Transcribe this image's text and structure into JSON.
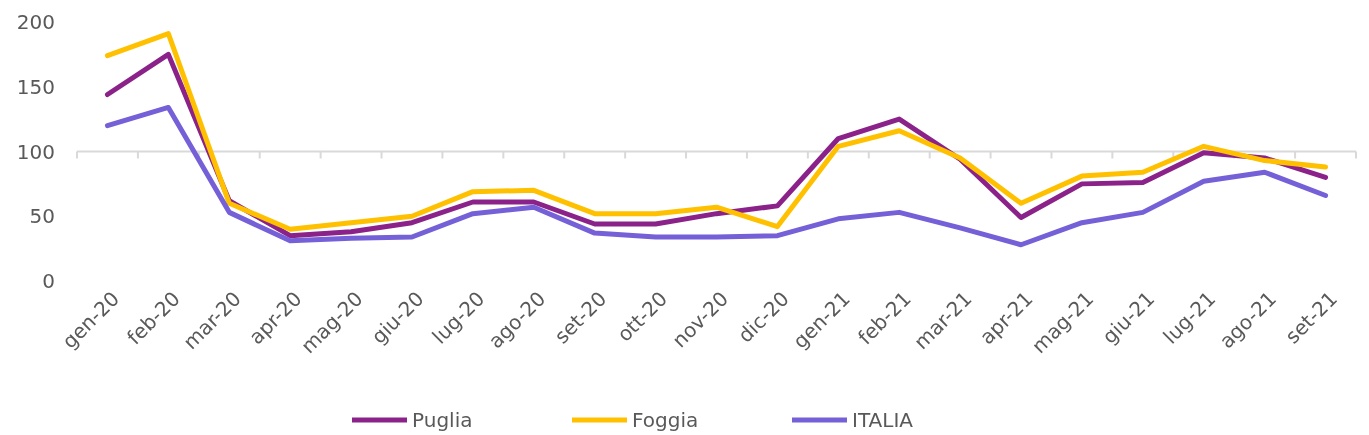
{
  "chart_data": {
    "type": "line",
    "categories": [
      "gen-20",
      "feb-20",
      "mar-20",
      "apr-20",
      "mag-20",
      "giu-20",
      "lug-20",
      "ago-20",
      "set-20",
      "ott-20",
      "nov-20",
      "dic-20",
      "gen-21",
      "feb-21",
      "mar-21",
      "apr-21",
      "mag-21",
      "giu-21",
      "lug-21",
      "ago-21",
      "set-21"
    ],
    "series": [
      {
        "name": "Puglia",
        "color": "#8b2289",
        "values": [
          144,
          175,
          62,
          35,
          38,
          45,
          61,
          61,
          44,
          44,
          52,
          58,
          110,
          125,
          94,
          49,
          75,
          76,
          99,
          95,
          80
        ]
      },
      {
        "name": "Foggia",
        "color": "#ffc000",
        "values": [
          174,
          191,
          60,
          40,
          45,
          50,
          69,
          70,
          52,
          52,
          57,
          42,
          104,
          116,
          95,
          60,
          81,
          84,
          104,
          93,
          88
        ]
      },
      {
        "name": "ITALIA",
        "color": "#7560d8",
        "values": [
          120,
          134,
          53,
          31,
          33,
          34,
          52,
          57,
          37,
          34,
          34,
          35,
          48,
          53,
          41,
          28,
          45,
          53,
          77,
          84,
          66
        ]
      }
    ],
    "ylim": [
      0,
      200
    ],
    "yticks": [
      0,
      50,
      100,
      150,
      200
    ],
    "ref_lines": [
      {
        "axis": "y",
        "value": 100,
        "color": "#d9d9d9"
      }
    ],
    "grid": false,
    "legend": "bottom",
    "marker": "none",
    "line_style": "solid"
  }
}
